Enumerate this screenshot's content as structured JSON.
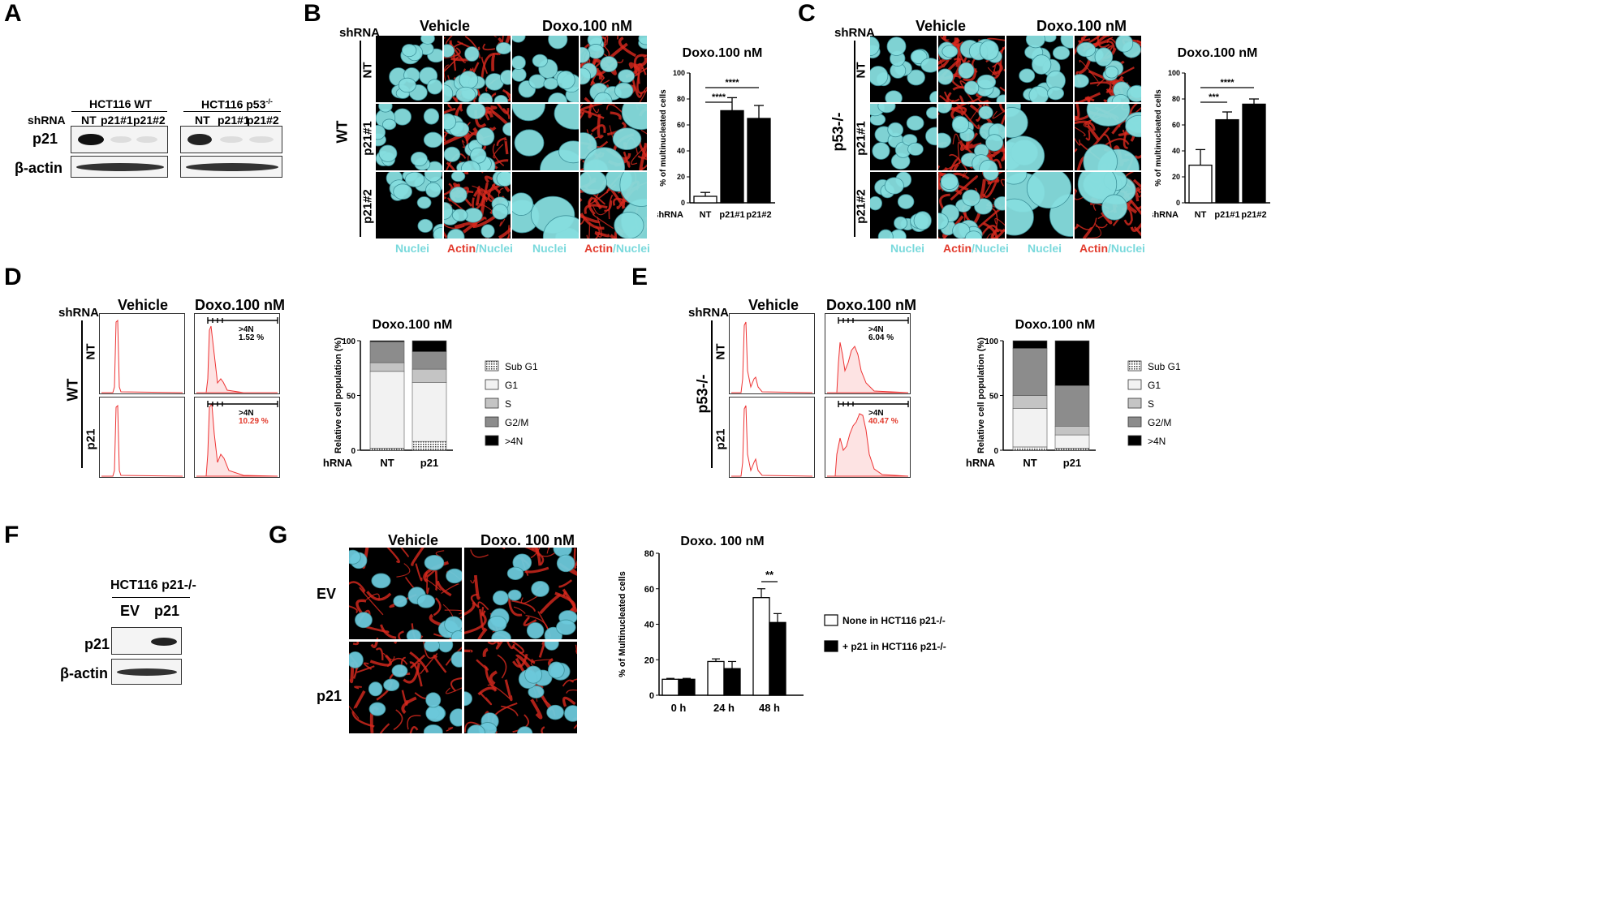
{
  "panels": {
    "A": "A",
    "B": "B",
    "C": "C",
    "D": "D",
    "E": "E",
    "F": "F",
    "G": "G"
  },
  "panelA": {
    "group1": "HCT116 WT",
    "group2_prefix": "HCT116 p53",
    "group2_sup": "-/-",
    "shrna": "shRNA",
    "lanes1": [
      "NT",
      "p21#1",
      "p21#2"
    ],
    "lanes2": [
      "NT",
      "p21#1",
      "p21#2"
    ],
    "row1": "p21",
    "row2": "β-actin"
  },
  "panelB": {
    "shrna": "shRNA",
    "col_vehicle": "Vehicle",
    "col_doxo": "Doxo.100 nM",
    "side": "WT",
    "rows": [
      "NT",
      "p21#1",
      "p21#2"
    ],
    "bottom": {
      "nuclei": "Nuclei",
      "actin": "Actin",
      "slash_nuclei": "/Nuclei"
    }
  },
  "panelC": {
    "shrna": "shRNA",
    "col_vehicle": "Vehicle",
    "col_doxo": "Doxo.100 nM",
    "side": "p53-/-",
    "rows": [
      "NT",
      "p21#1",
      "p21#2"
    ],
    "bottom": {
      "nuclei": "Nuclei",
      "actin": "Actin",
      "slash_nuclei": "/Nuclei"
    }
  },
  "panelD": {
    "shrna": "shRNA",
    "col_vehicle": "Vehicle",
    "col_doxo": "Doxo.100 nM",
    "side": "WT",
    "rows": [
      "NT",
      "p21"
    ],
    "gate_label": ">4N",
    "gate_values": [
      "1.52 %",
      "10.29 %"
    ]
  },
  "panelE": {
    "shrna": "shRNA",
    "col_vehicle": "Vehicle",
    "col_doxo": "Doxo.100 nM",
    "side": "p53-/-",
    "rows": [
      "NT",
      "p21"
    ],
    "gate_label": ">4N",
    "gate_values": [
      "6.04 %",
      "40.47 %"
    ]
  },
  "panelF": {
    "title": "HCT116 p21-/-",
    "lanes": [
      "EV",
      "p21"
    ],
    "row1": "p21",
    "row2": "β-actin"
  },
  "panelG": {
    "col_vehicle": "Vehicle",
    "col_doxo": "Doxo. 100 nM",
    "rows": [
      "EV",
      "p21"
    ]
  },
  "chart_data": [
    {
      "id": "B-bar",
      "type": "bar",
      "title": "Doxo.100 nM",
      "ylabel": "% of multinucleated cells",
      "xlabel_prefix": "shRNA",
      "categories": [
        "NT",
        "p21#1",
        "p21#2"
      ],
      "values": [
        5,
        71,
        65
      ],
      "errors": [
        3,
        10,
        10
      ],
      "fills": [
        "#ffffff",
        "#000000",
        "#000000"
      ],
      "ylim": [
        0,
        100
      ],
      "yticks": [
        0,
        20,
        40,
        60,
        80,
        100
      ],
      "significance": [
        {
          "from": 0,
          "to": 1,
          "label": "****"
        },
        {
          "from": 0,
          "to": 2,
          "label": "****"
        }
      ]
    },
    {
      "id": "C-bar",
      "type": "bar",
      "title": "Doxo.100 nM",
      "ylabel": "% of multinucleated cells",
      "xlabel_prefix": "shRNA",
      "categories": [
        "NT",
        "p21#1",
        "p21#2"
      ],
      "values": [
        29,
        64,
        76
      ],
      "errors": [
        12,
        6,
        4
      ],
      "fills": [
        "#ffffff",
        "#000000",
        "#000000"
      ],
      "ylim": [
        0,
        100
      ],
      "yticks": [
        0,
        20,
        40,
        60,
        80,
        100
      ],
      "significance": [
        {
          "from": 0,
          "to": 1,
          "label": "***"
        },
        {
          "from": 0,
          "to": 2,
          "label": "****"
        }
      ]
    },
    {
      "id": "D-stack",
      "type": "bar",
      "stacked": true,
      "title": "Doxo.100 nM",
      "ylabel": "Relative cell population (%)",
      "xlabel_prefix": "shRNA",
      "categories": [
        "NT",
        "p21"
      ],
      "series": [
        {
          "name": "Sub G1",
          "values": [
            2,
            8
          ],
          "color": "#d8d8d8",
          "pattern": true
        },
        {
          "name": "G1",
          "values": [
            70,
            54
          ],
          "color": "#f2f2f2"
        },
        {
          "name": "S",
          "values": [
            8,
            12
          ],
          "color": "#c4c4c4"
        },
        {
          "name": "G2/M",
          "values": [
            19,
            16
          ],
          "color": "#8c8c8c"
        },
        {
          "name": ">4N",
          "values": [
            1,
            10
          ],
          "color": "#000000"
        }
      ],
      "ylim": [
        0,
        100
      ],
      "yticks": [
        0,
        50,
        100
      ]
    },
    {
      "id": "E-stack",
      "type": "bar",
      "stacked": true,
      "title": "Doxo.100 nM",
      "ylabel": "Relative cell population (%)",
      "xlabel_prefix": "shRNA",
      "categories": [
        "NT",
        "p21"
      ],
      "series": [
        {
          "name": "Sub G1",
          "values": [
            3,
            2
          ],
          "color": "#d8d8d8",
          "pattern": true
        },
        {
          "name": "G1",
          "values": [
            35,
            12
          ],
          "color": "#f2f2f2"
        },
        {
          "name": "S",
          "values": [
            12,
            8
          ],
          "color": "#c4c4c4"
        },
        {
          "name": "G2/M",
          "values": [
            43,
            37
          ],
          "color": "#8c8c8c"
        },
        {
          "name": ">4N",
          "values": [
            7,
            41
          ],
          "color": "#000000"
        }
      ],
      "ylim": [
        0,
        100
      ],
      "yticks": [
        0,
        50,
        100
      ]
    },
    {
      "id": "G-bar",
      "type": "bar",
      "title": "Doxo. 100 nM",
      "ylabel": "% of Multinucleated cells",
      "categories": [
        "0 h",
        "24 h",
        "48 h"
      ],
      "series": [
        {
          "name": "None in HCT116 p21-/-",
          "values": [
            9,
            19,
            55
          ],
          "errors": [
            0.5,
            1.5,
            5
          ],
          "color": "#ffffff"
        },
        {
          "name": "+ p21 in HCT116 p21-/-",
          "values": [
            9,
            15,
            41
          ],
          "errors": [
            0.5,
            4,
            5
          ],
          "color": "#000000"
        }
      ],
      "ylim": [
        0,
        80
      ],
      "yticks": [
        0,
        20,
        40,
        60,
        80
      ],
      "significance": [
        {
          "category": 2,
          "label": "**"
        }
      ]
    }
  ]
}
